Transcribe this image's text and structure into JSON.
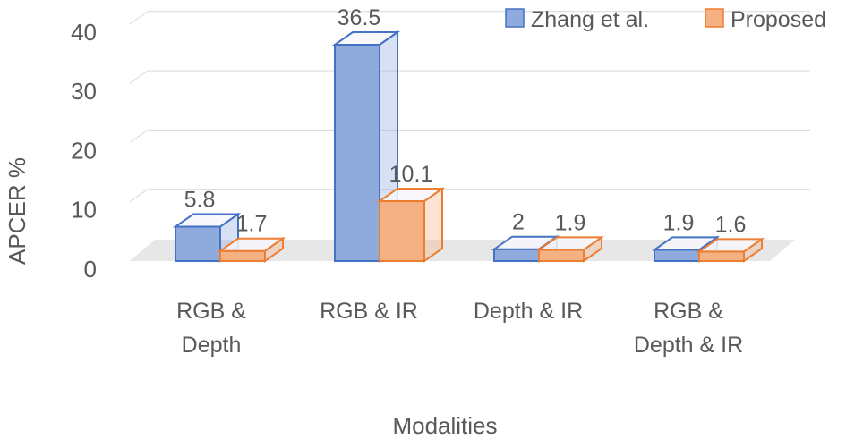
{
  "chart_data": {
    "type": "bar",
    "style": "3d-clustered-column",
    "categories": [
      [
        "RGB &",
        "Depth"
      ],
      [
        "RGB & IR"
      ],
      [
        "Depth & IR"
      ],
      [
        "RGB &",
        "Depth & IR"
      ]
    ],
    "series": [
      {
        "name": "Zhang et al.",
        "values": [
          5.8,
          36.5,
          2,
          1.9
        ],
        "labels": [
          "5.8",
          "36.5",
          "2",
          "1.9"
        ],
        "color": "#4472C4",
        "fill": "#8FAADC"
      },
      {
        "name": "Proposed",
        "values": [
          1.7,
          10.1,
          1.9,
          1.6
        ],
        "labels": [
          "1.7",
          "10.1",
          "1.9",
          "1.6"
        ],
        "color": "#ED7D31",
        "fill": "#F4B183"
      }
    ],
    "ylim": [
      0,
      40
    ],
    "yticks": [
      "0",
      "10",
      "20",
      "30",
      "40"
    ],
    "ylabel": "APCER %",
    "xlabel": "Modalities",
    "grid": true,
    "legend": "top-right"
  }
}
